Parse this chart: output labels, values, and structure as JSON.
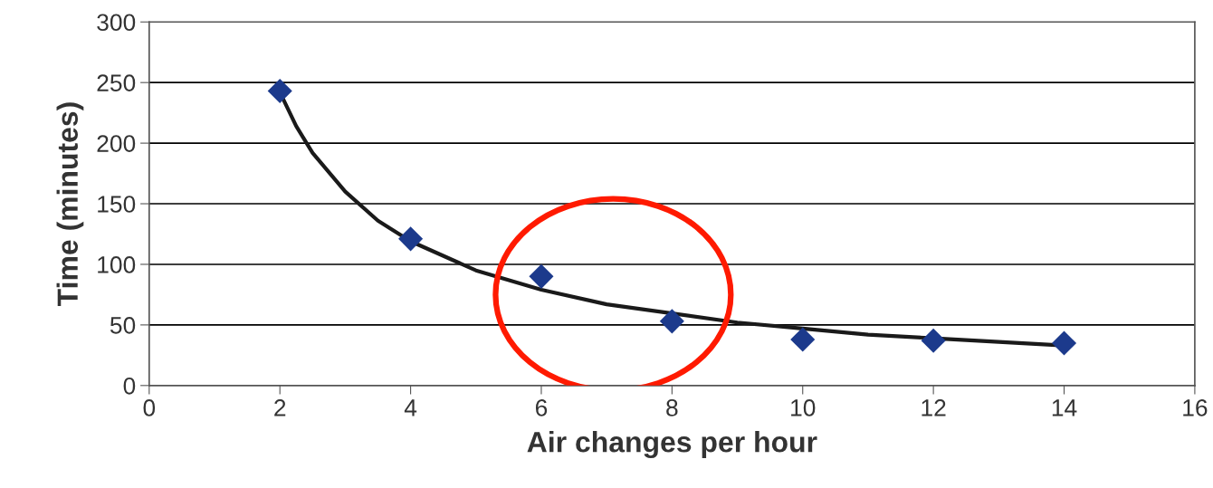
{
  "chart_data": {
    "type": "scatter",
    "xlabel": "Air changes per hour",
    "ylabel": "Time (minutes)",
    "xlim": [
      0,
      16
    ],
    "xticks": [
      0,
      2,
      4,
      6,
      8,
      10,
      12,
      14,
      16
    ],
    "ylim": [
      0,
      300
    ],
    "yticks": [
      0,
      50,
      100,
      150,
      200,
      250,
      300
    ],
    "grid": "y",
    "series": [
      {
        "marker": "diamond",
        "color": "#1c3a8c",
        "x": [
          2,
          4,
          6,
          8,
          10,
          12,
          14
        ],
        "values": [
          243,
          121,
          90,
          53,
          38,
          37,
          35
        ]
      },
      {
        "type": "line",
        "marker": "none",
        "line_style": "solid",
        "color": "#1a1a1a",
        "x": [
          2,
          2.25,
          2.5,
          3,
          3.5,
          4,
          5,
          6,
          7,
          9,
          10,
          11,
          12,
          13,
          14
        ],
        "values": [
          242,
          214,
          192,
          160,
          136,
          119,
          95,
          79,
          67,
          52,
          47,
          42,
          39,
          36,
          33
        ]
      }
    ]
  }
}
